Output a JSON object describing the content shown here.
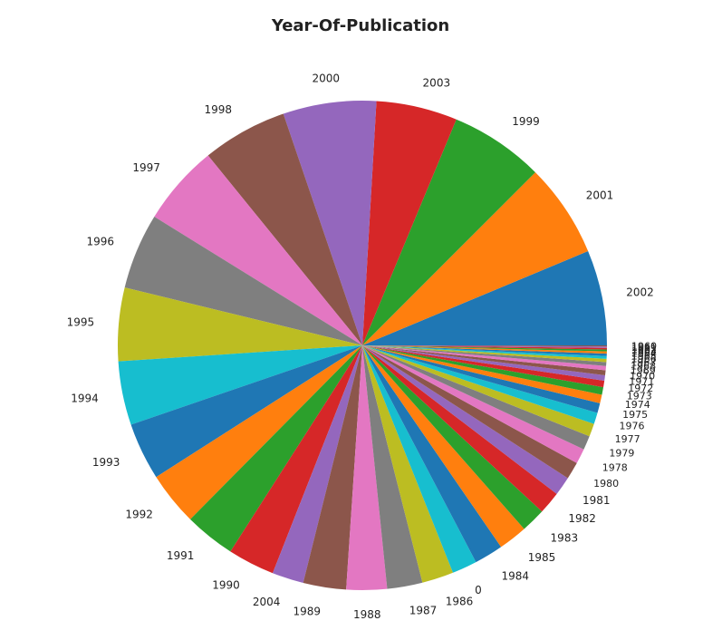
{
  "chart_data": {
    "type": "pie",
    "title": "Year-Of-Publication",
    "start_angle_deg": 0,
    "direction": "counterclockwise",
    "slices": [
      {
        "label": "2002",
        "value": 17628,
        "color": "#1f77b4"
      },
      {
        "label": "2001",
        "value": 17360,
        "color": "#ff7f0e"
      },
      {
        "label": "1999",
        "value": 17432,
        "color": "#2ca02c"
      },
      {
        "label": "2003",
        "value": 15000,
        "color": "#d62728"
      },
      {
        "label": "2000",
        "value": 17234,
        "color": "#9467bd"
      },
      {
        "label": "1998",
        "value": 15767,
        "color": "#8c564b"
      },
      {
        "label": "1997",
        "value": 14890,
        "color": "#e377c2"
      },
      {
        "label": "1996",
        "value": 14030,
        "color": "#7f7f7f"
      },
      {
        "label": "1995",
        "value": 13546,
        "color": "#bcbd22"
      },
      {
        "label": "1994",
        "value": 11796,
        "color": "#17becf"
      },
      {
        "label": "1993",
        "value": 10603,
        "color": "#1f77b4"
      },
      {
        "label": "1992",
        "value": 9906,
        "color": "#ff7f0e"
      },
      {
        "label": "1991",
        "value": 9389,
        "color": "#2ca02c"
      },
      {
        "label": "1990",
        "value": 8660,
        "color": "#d62728"
      },
      {
        "label": "2004",
        "value": 5839,
        "color": "#9467bd"
      },
      {
        "label": "1989",
        "value": 7936,
        "color": "#8c564b"
      },
      {
        "label": "1988",
        "value": 7492,
        "color": "#e377c2"
      },
      {
        "label": "1987",
        "value": 6529,
        "color": "#7f7f7f"
      },
      {
        "label": "1986",
        "value": 5842,
        "color": "#bcbd22"
      },
      {
        "label": "0",
        "value": 4618,
        "color": "#17becf"
      },
      {
        "label": "1984",
        "value": 5342,
        "color": "#1f77b4"
      },
      {
        "label": "1985",
        "value": 5343,
        "color": "#ff7f0e"
      },
      {
        "label": "1983",
        "value": 4532,
        "color": "#2ca02c"
      },
      {
        "label": "1982",
        "value": 4199,
        "color": "#d62728"
      },
      {
        "label": "1981",
        "value": 3500,
        "color": "#9467bd"
      },
      {
        "label": "1980",
        "value": 3200,
        "color": "#8c564b"
      },
      {
        "label": "1978",
        "value": 2800,
        "color": "#e377c2"
      },
      {
        "label": "1979",
        "value": 2600,
        "color": "#7f7f7f"
      },
      {
        "label": "1977",
        "value": 2400,
        "color": "#bcbd22"
      },
      {
        "label": "1976",
        "value": 2100,
        "color": "#17becf"
      },
      {
        "label": "1975",
        "value": 1800,
        "color": "#1f77b4"
      },
      {
        "label": "1974",
        "value": 1600,
        "color": "#ff7f0e"
      },
      {
        "label": "1973",
        "value": 1400,
        "color": "#2ca02c"
      },
      {
        "label": "1972",
        "value": 1200,
        "color": "#d62728"
      },
      {
        "label": "1971",
        "value": 1000,
        "color": "#9467bd"
      },
      {
        "label": "1970",
        "value": 900,
        "color": "#8c564b"
      },
      {
        "label": "1969",
        "value": 800,
        "color": "#e377c2"
      },
      {
        "label": "1968",
        "value": 700,
        "color": "#7f7f7f"
      },
      {
        "label": "1967",
        "value": 600,
        "color": "#bcbd22"
      },
      {
        "label": "1966",
        "value": 500,
        "color": "#17becf"
      },
      {
        "label": "1965",
        "value": 450,
        "color": "#1f77b4"
      },
      {
        "label": "1964",
        "value": 400,
        "color": "#ff7f0e"
      },
      {
        "label": "1963",
        "value": 350,
        "color": "#2ca02c"
      },
      {
        "label": "1962",
        "value": 300,
        "color": "#d62728"
      },
      {
        "label": "1961",
        "value": 250,
        "color": "#9467bd"
      },
      {
        "label": "1960",
        "value": 200,
        "color": "#8c564b"
      }
    ]
  }
}
